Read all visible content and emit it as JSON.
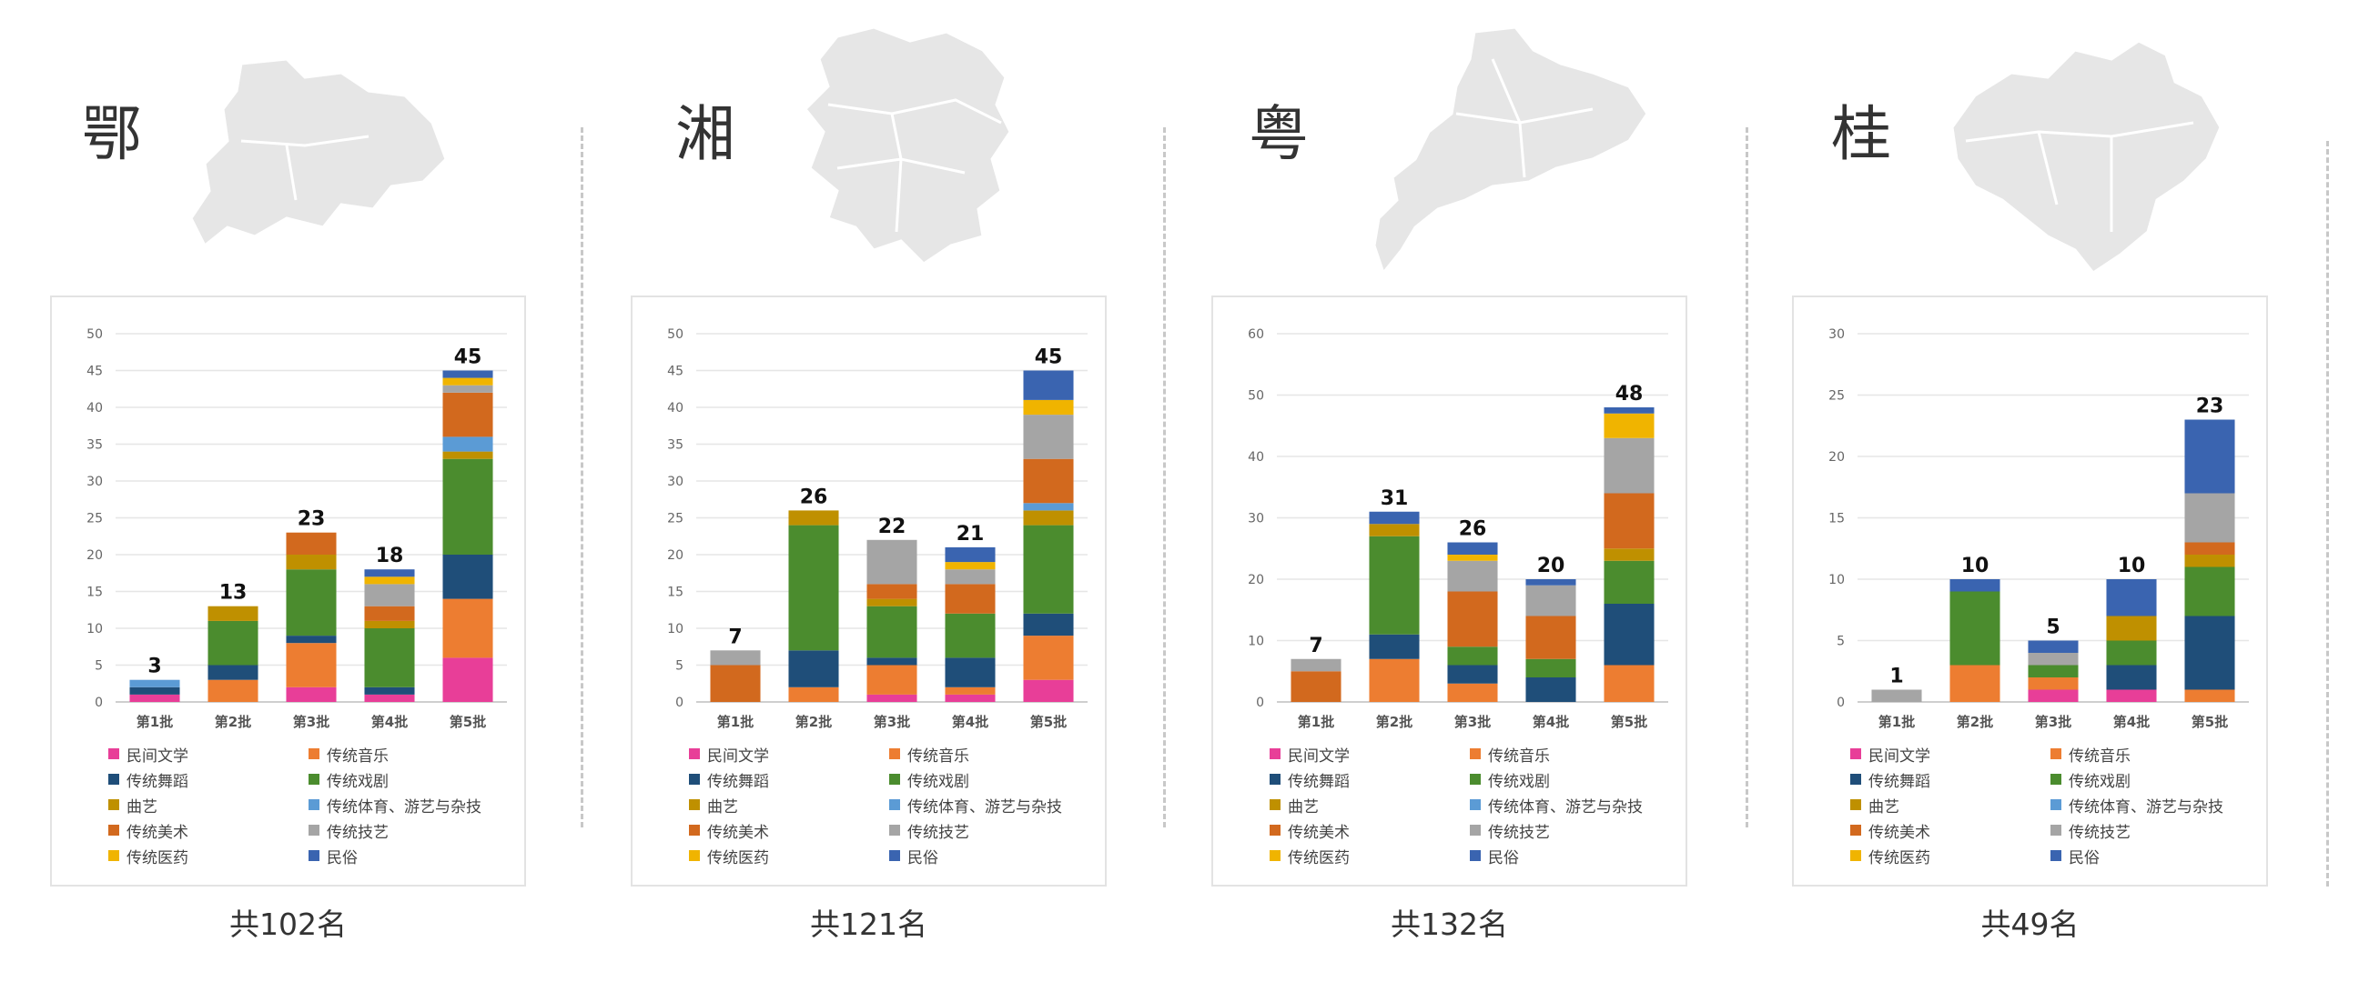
{
  "panels": [
    {
      "province": "鄂",
      "total": "共102名",
      "chart_data": {
        "type": "bar",
        "stacked": true,
        "categories": [
          "第1批",
          "第2批",
          "第3批",
          "第4批",
          "第5批"
        ],
        "ylim": [
          0,
          50
        ],
        "yticks": [
          0,
          5,
          10,
          15,
          20,
          25,
          30,
          35,
          40,
          45,
          50
        ],
        "totals": [
          3,
          13,
          23,
          18,
          45
        ],
        "series": [
          {
            "name": "民间文学",
            "values": [
              1,
              0,
              2,
              1,
              6
            ]
          },
          {
            "name": "传统音乐",
            "values": [
              0,
              3,
              6,
              0,
              8
            ]
          },
          {
            "name": "传统舞蹈",
            "values": [
              1,
              2,
              1,
              1,
              6
            ]
          },
          {
            "name": "传统戏剧",
            "values": [
              0,
              6,
              9,
              8,
              13
            ]
          },
          {
            "name": "曲艺",
            "values": [
              0,
              2,
              2,
              1,
              1
            ]
          },
          {
            "name": "传统体育、游艺与杂技",
            "values": [
              1,
              0,
              0,
              0,
              2
            ]
          },
          {
            "name": "传统美术",
            "values": [
              0,
              0,
              3,
              2,
              6
            ]
          },
          {
            "name": "传统技艺",
            "values": [
              0,
              0,
              0,
              3,
              1
            ]
          },
          {
            "name": "传统医药",
            "values": [
              0,
              0,
              0,
              1,
              1
            ]
          },
          {
            "name": "民俗",
            "values": [
              0,
              0,
              0,
              1,
              1
            ]
          }
        ]
      }
    },
    {
      "province": "湘",
      "total": "共121名",
      "chart_data": {
        "type": "bar",
        "stacked": true,
        "categories": [
          "第1批",
          "第2批",
          "第3批",
          "第4批",
          "第5批"
        ],
        "ylim": [
          0,
          50
        ],
        "yticks": [
          0,
          5,
          10,
          15,
          20,
          25,
          30,
          35,
          40,
          45,
          50
        ],
        "totals": [
          7,
          26,
          22,
          21,
          45
        ],
        "series": [
          {
            "name": "民间文学",
            "values": [
              0,
              0,
              1,
              1,
              3
            ]
          },
          {
            "name": "传统音乐",
            "values": [
              0,
              2,
              4,
              1,
              6
            ]
          },
          {
            "name": "传统舞蹈",
            "values": [
              0,
              5,
              1,
              4,
              3
            ]
          },
          {
            "name": "传统戏剧",
            "values": [
              0,
              17,
              7,
              6,
              12
            ]
          },
          {
            "name": "曲艺",
            "values": [
              0,
              2,
              1,
              0,
              2
            ]
          },
          {
            "name": "传统体育、游艺与杂技",
            "values": [
              0,
              0,
              0,
              0,
              1
            ]
          },
          {
            "name": "传统美术",
            "values": [
              5,
              0,
              2,
              4,
              6
            ]
          },
          {
            "name": "传统技艺",
            "values": [
              2,
              0,
              6,
              2,
              6
            ]
          },
          {
            "name": "传统医药",
            "values": [
              0,
              0,
              0,
              1,
              2
            ]
          },
          {
            "name": "民俗",
            "values": [
              0,
              0,
              0,
              2,
              4
            ]
          }
        ]
      }
    },
    {
      "province": "粤",
      "total": "共132名",
      "chart_data": {
        "type": "bar",
        "stacked": true,
        "categories": [
          "第1批",
          "第2批",
          "第3批",
          "第4批",
          "第5批"
        ],
        "ylim": [
          0,
          60
        ],
        "yticks": [
          0,
          10,
          20,
          30,
          40,
          50,
          60
        ],
        "totals": [
          7,
          31,
          26,
          20,
          48
        ],
        "series": [
          {
            "name": "民间文学",
            "values": [
              0,
              0,
              0,
              0,
              0
            ]
          },
          {
            "name": "传统音乐",
            "values": [
              0,
              7,
              3,
              0,
              6
            ]
          },
          {
            "name": "传统舞蹈",
            "values": [
              0,
              4,
              3,
              4,
              10
            ]
          },
          {
            "name": "传统戏剧",
            "values": [
              0,
              16,
              3,
              3,
              7
            ]
          },
          {
            "name": "曲艺",
            "values": [
              0,
              2,
              0,
              0,
              2
            ]
          },
          {
            "name": "传统体育、游艺与杂技",
            "values": [
              0,
              0,
              0,
              0,
              0
            ]
          },
          {
            "name": "传统美术",
            "values": [
              5,
              0,
              9,
              7,
              9
            ]
          },
          {
            "name": "传统技艺",
            "values": [
              2,
              0,
              5,
              5,
              9
            ]
          },
          {
            "name": "传统医药",
            "values": [
              0,
              0,
              1,
              0,
              4
            ]
          },
          {
            "name": "民俗",
            "values": [
              0,
              2,
              2,
              1,
              1
            ]
          }
        ]
      }
    },
    {
      "province": "桂",
      "total": "共49名",
      "chart_data": {
        "type": "bar",
        "stacked": true,
        "categories": [
          "第1批",
          "第2批",
          "第3批",
          "第4批",
          "第5批"
        ],
        "ylim": [
          0,
          30
        ],
        "yticks": [
          0,
          5,
          10,
          15,
          20,
          25,
          30
        ],
        "totals": [
          1,
          10,
          5,
          10,
          23
        ],
        "series": [
          {
            "name": "民间文学",
            "values": [
              0,
              0,
              1,
              1,
              0
            ]
          },
          {
            "name": "传统音乐",
            "values": [
              0,
              3,
              1,
              0,
              1
            ]
          },
          {
            "name": "传统舞蹈",
            "values": [
              0,
              0,
              0,
              2,
              6
            ]
          },
          {
            "name": "传统戏剧",
            "values": [
              0,
              6,
              1,
              2,
              4
            ]
          },
          {
            "name": "曲艺",
            "values": [
              0,
              0,
              0,
              2,
              1
            ]
          },
          {
            "name": "传统体育、游艺与杂技",
            "values": [
              0,
              0,
              0,
              0,
              0
            ]
          },
          {
            "name": "传统美术",
            "values": [
              0,
              0,
              0,
              0,
              1
            ]
          },
          {
            "name": "传统技艺",
            "values": [
              1,
              0,
              1,
              0,
              4
            ]
          },
          {
            "name": "传统医药",
            "values": [
              0,
              0,
              0,
              0,
              0
            ]
          },
          {
            "name": "民俗",
            "values": [
              0,
              1,
              1,
              3,
              6
            ]
          }
        ]
      }
    }
  ],
  "legend_colors": {
    "民间文学": "#e83e98",
    "传统音乐": "#ed7d31",
    "传统舞蹈": "#1f4e79",
    "传统戏剧": "#4b8c2e",
    "曲艺": "#bf9000",
    "传统体育、游艺与杂技": "#5b9bd5",
    "传统美术": "#d2691e",
    "传统技艺": "#a5a5a5",
    "传统医药": "#f0b400",
    "民俗": "#3a64b0"
  },
  "map_icons": [
    "hubei-map-icon",
    "hunan-map-icon",
    "guangdong-map-icon",
    "guangxi-map-icon"
  ]
}
